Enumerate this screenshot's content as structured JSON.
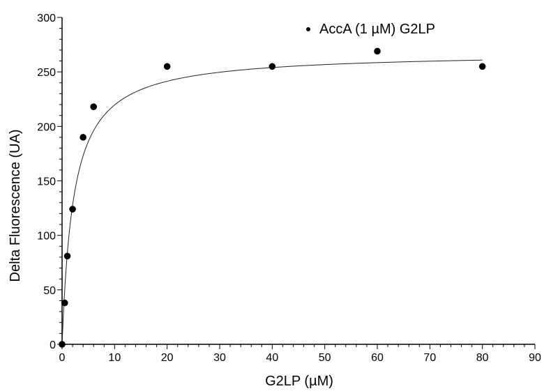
{
  "chart_data": {
    "type": "scatter",
    "title": "",
    "xlabel": "G2LP (µM)",
    "ylabel": "Delta Fluorescence (UA)",
    "xlim": [
      0,
      90
    ],
    "ylim": [
      0,
      300
    ],
    "x_ticks": [
      0,
      10,
      20,
      30,
      40,
      50,
      60,
      70,
      80,
      90
    ],
    "y_ticks": [
      0,
      50,
      100,
      150,
      200,
      250,
      300
    ],
    "x_tick_labels": [
      "0",
      "10",
      "20",
      "30",
      "40",
      "50",
      "60",
      "70",
      "80",
      "90"
    ],
    "y_tick_labels": [
      "0",
      "50",
      "100",
      "150",
      "200",
      "250",
      "300"
    ],
    "legend_position": "top-right",
    "grid": false,
    "series": [
      {
        "name": "AccA (1 µM) G2LP",
        "marker_color": "#000000",
        "x": [
          0,
          0.5,
          1,
          2,
          4,
          6,
          20,
          40,
          60,
          80
        ],
        "y": [
          0,
          38,
          81,
          124,
          190,
          218,
          255,
          255,
          269,
          255
        ]
      }
    ],
    "fit_curve": {
      "model": "hyperbolic",
      "color": "#222222",
      "x_range": [
        0,
        80
      ],
      "bmax": 268,
      "kd": 2.2
    }
  }
}
